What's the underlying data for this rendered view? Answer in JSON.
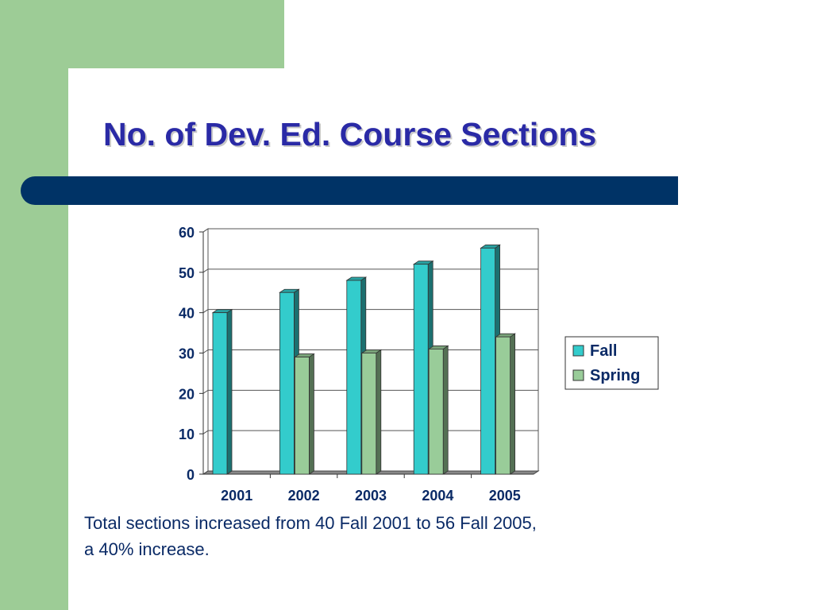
{
  "slide": {
    "title": "No. of Dev. Ed. Course Sections",
    "caption_line1": "Total sections increased from 40 Fall 2001 to 56 Fall 2005,",
    "caption_line2": "a 40% increase."
  },
  "colors": {
    "background_accent": "#9dcc96",
    "title_bar": "#003366",
    "title_text": "#2a2aa6",
    "fall": "#33cccc",
    "spring": "#99cc99"
  },
  "chart_data": {
    "type": "bar",
    "categories": [
      "2001",
      "2002",
      "2003",
      "2004",
      "2005"
    ],
    "series": [
      {
        "name": "Fall",
        "values": [
          40,
          45,
          48,
          52,
          56
        ]
      },
      {
        "name": "Spring",
        "values": [
          0,
          29,
          30,
          31,
          34
        ]
      }
    ],
    "yticks": [
      "0",
      "10",
      "20",
      "30",
      "40",
      "50",
      "60"
    ],
    "ylim": [
      0,
      60
    ],
    "grid": true,
    "legend": "right",
    "style": "3d-columns"
  }
}
